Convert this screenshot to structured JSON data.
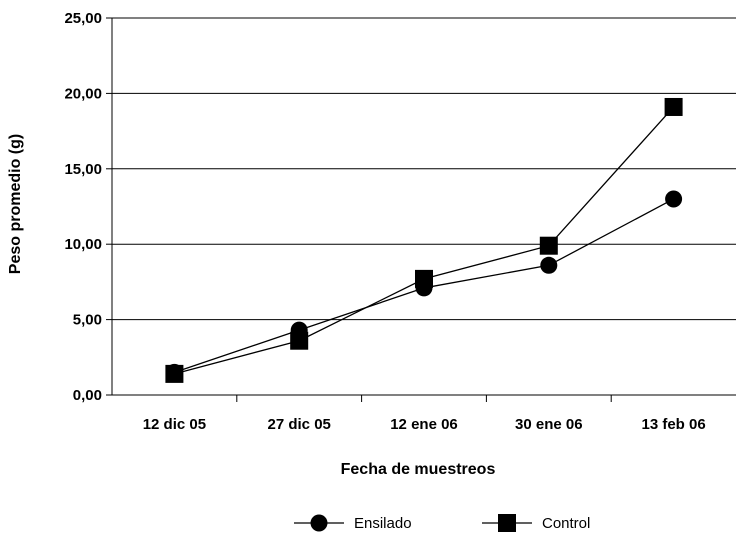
{
  "chart_data": {
    "type": "line",
    "title": "",
    "xlabel": "Fecha de muestreos",
    "ylabel": "Peso promedio (g)",
    "categories": [
      "12 dic 05",
      "27 dic 05",
      "12 ene 06",
      "30 ene 06",
      "13 feb 06"
    ],
    "ylim": [
      0,
      25
    ],
    "yticks": [
      "0,00",
      "5,00",
      "10,00",
      "15,00",
      "20,00",
      "25,00"
    ],
    "grid": "horizontal",
    "legend_placement": "bottom",
    "series": [
      {
        "name": "Ensilado",
        "marker": "circle",
        "color": "#000000",
        "values": [
          1.5,
          4.3,
          7.1,
          8.6,
          13.0
        ]
      },
      {
        "name": "Control",
        "marker": "square",
        "color": "#000000",
        "values": [
          1.4,
          3.6,
          7.7,
          9.9,
          19.1
        ]
      }
    ]
  }
}
